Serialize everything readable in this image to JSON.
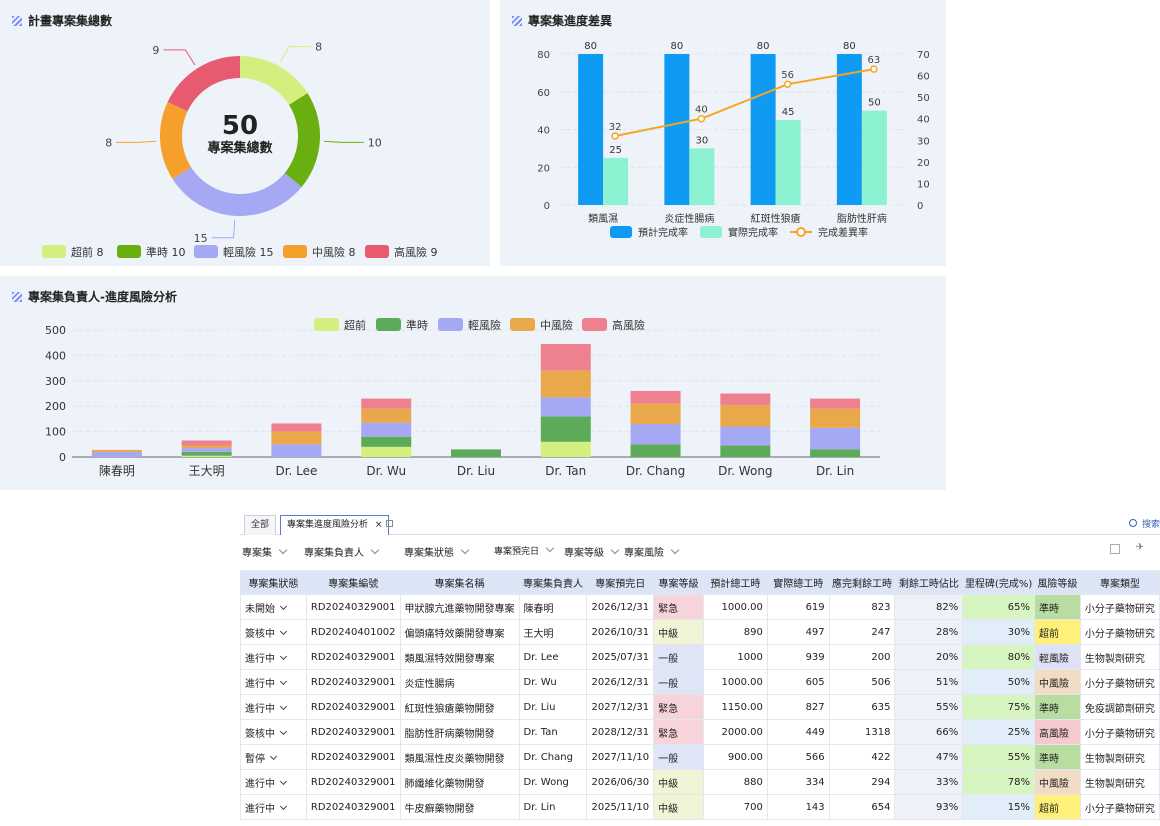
{
  "donut": {
    "title": "計畫專案集總數",
    "center_value": "50",
    "center_label": "專案集總數",
    "chart_data": {
      "type": "pie",
      "donut": true,
      "categories": [
        "超前",
        "準時",
        "輕風險",
        "中風險",
        "高風險"
      ],
      "values": [
        8,
        10,
        15,
        8,
        9
      ],
      "colors": [
        "#d4ef7e",
        "#6aaf12",
        "#a5a8f2",
        "#f5a02c",
        "#e85a70"
      ],
      "legend": [
        "超前  8",
        "準時 10",
        "輕風險 15",
        "中風險 8",
        "高風險 9"
      ],
      "legend_position": "bottom"
    }
  },
  "progress": {
    "title": "專案集進度差異",
    "chart_data": {
      "type": "bar",
      "categories": [
        "類風濕",
        "炎症性腸病",
        "紅斑性狼瘡",
        "脂肪性肝病"
      ],
      "series": [
        {
          "name": "預計完成率",
          "type": "bar",
          "axis": "left",
          "color": "#0f9bf4",
          "values": [
            80,
            80,
            80,
            80
          ]
        },
        {
          "name": "實際完成率",
          "type": "bar",
          "axis": "left",
          "color": "#8df2d2",
          "values": [
            25,
            30,
            45,
            50
          ]
        },
        {
          "name": "完成差異率",
          "type": "line",
          "axis": "right",
          "color": "#f5a623",
          "values": [
            32,
            40,
            56,
            63
          ]
        }
      ],
      "y_left": [
        0,
        80
      ],
      "y_left_ticks": [
        0,
        20,
        40,
        60,
        80
      ],
      "y_right": [
        0,
        70
      ],
      "y_right_ticks": [
        0,
        10,
        20,
        30,
        40,
        50,
        60,
        70
      ],
      "legend_position": "bottom"
    }
  },
  "owners": {
    "title": "專案集負責人-進度風險分析",
    "chart_data": {
      "type": "bar",
      "stacked": true,
      "categories": [
        "陳春明",
        "王大明",
        "Dr. Lee",
        "Dr. Wu",
        "Dr. Liu",
        "Dr. Tan",
        "Dr. Chang",
        "Dr. Wong",
        "Dr. Lin"
      ],
      "series": [
        {
          "name": "超前",
          "color": "#d4ef7e",
          "values": [
            0,
            5,
            0,
            40,
            0,
            60,
            0,
            0,
            0
          ]
        },
        {
          "name": "準時",
          "color": "#5bab58",
          "values": [
            0,
            15,
            0,
            40,
            30,
            100,
            50,
            45,
            30
          ]
        },
        {
          "name": "輕風險",
          "color": "#a5a8f2",
          "values": [
            20,
            15,
            50,
            55,
            0,
            75,
            80,
            75,
            85
          ]
        },
        {
          "name": "中風險",
          "color": "#e9a84a",
          "values": [
            8,
            10,
            50,
            55,
            0,
            105,
            80,
            85,
            75
          ]
        },
        {
          "name": "高風險",
          "color": "#ee8090",
          "values": [
            0,
            20,
            32,
            40,
            0,
            105,
            50,
            45,
            40
          ]
        }
      ],
      "ylim": [
        0,
        500
      ],
      "y_ticks": [
        0,
        100,
        200,
        300,
        400,
        500
      ],
      "legend_position": "top"
    }
  },
  "table": {
    "tabs": [
      "全部",
      "專案集進度風險分析"
    ],
    "tab_close": "×",
    "search_label": "搜索",
    "filters": [
      "專案集",
      "專案集負責人",
      "專案集狀態",
      "專案預完日",
      "專案等級",
      "專案風險"
    ],
    "columns": [
      "專案集狀態",
      "專案集編號",
      "專案集名稱",
      "專案集負責人",
      "專案預完日",
      "專案等級",
      "預計總工時",
      "實際總工時",
      "應完剩餘工時",
      "剩餘工時佔比",
      "里程碑(完成%)",
      "風險等級",
      "專案類型"
    ],
    "rows": [
      [
        "未開始",
        "RD20240329001",
        "甲狀腺亢進藥物開發專案",
        "陳春明",
        "2026/12/31",
        "緊急",
        "1000.00",
        "619",
        "823",
        "82%",
        "65%",
        "準時",
        "小分子藥物研究"
      ],
      [
        "簽核中",
        "RD20240401002",
        "偏頭痛特效藥開發專案",
        "王大明",
        "2026/10/31",
        "中級",
        "890",
        "497",
        "247",
        "28%",
        "30%",
        "超前",
        "小分子藥物研究"
      ],
      [
        "進行中",
        "RD20240329001",
        "類風濕特效開發專案",
        "Dr. Lee",
        "2025/07/31",
        "一般",
        "1000",
        "939",
        "200",
        "20%",
        "80%",
        "輕風險",
        "生物製劑研究"
      ],
      [
        "進行中",
        "RD20240329001",
        "炎症性腸病",
        "Dr. Wu",
        "2026/12/31",
        "一般",
        "1000.00",
        "605",
        "506",
        "51%",
        "50%",
        "中風險",
        "小分子藥物研究"
      ],
      [
        "進行中",
        "RD20240329001",
        "紅斑性狼瘡藥物開發",
        "Dr. Liu",
        "2027/12/31",
        "緊急",
        "1150.00",
        "827",
        "635",
        "55%",
        "75%",
        "準時",
        "免疫調節劑研究"
      ],
      [
        "簽核中",
        "RD20240329001",
        "脂肪性肝病藥物開發",
        "Dr. Tan",
        "2028/12/31",
        "緊急",
        "2000.00",
        "449",
        "1318",
        "66%",
        "25%",
        "高風險",
        "小分子藥物研究"
      ],
      [
        "暫停",
        "RD20240329001",
        "類風濕性皮炎藥物開發",
        "Dr. Chang",
        "2027/11/10",
        "一般",
        "900.00",
        "566",
        "422",
        "47%",
        "55%",
        "準時",
        "生物製劑研究"
      ],
      [
        "進行中",
        "RD20240329001",
        "肺纖維化藥物開發",
        "Dr. Wong",
        "2026/06/30",
        "中級",
        "880",
        "334",
        "294",
        "33%",
        "78%",
        "中風險",
        "生物製劑研究"
      ],
      [
        "進行中",
        "RD20240329001",
        "牛皮癬藥物開發",
        "Dr. Lin",
        "2025/11/10",
        "中級",
        "700",
        "143",
        "654",
        "93%",
        "15%",
        "超前",
        "小分子藥物研究"
      ]
    ],
    "level_colors": {
      "緊急": "#f7d4da",
      "中級": "#f1f5d6",
      "一般": "#dfe4f7"
    },
    "risk_colors": {
      "準時": "#b9dca0",
      "超前": "#fff07a",
      "輕風險": "#dfe2f7",
      "中風險": "#f1dcc4",
      "高風險": "#f5c9cf"
    },
    "milestone_colors": {
      "high": "#d7f5c0",
      "low": "#e1edf8"
    }
  }
}
